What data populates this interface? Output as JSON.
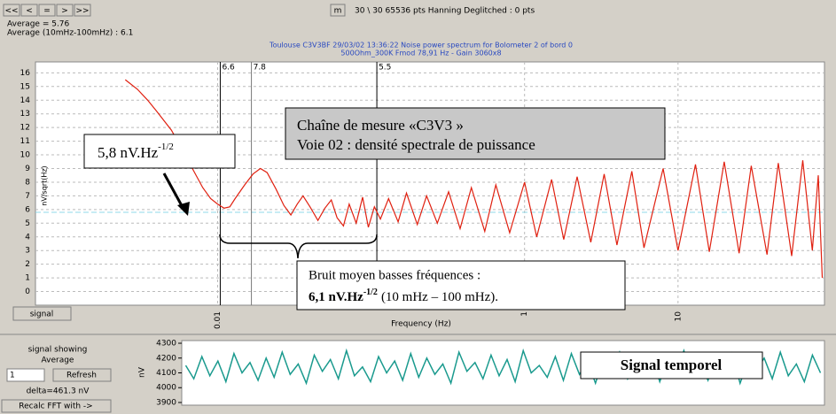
{
  "toolbar": {
    "buttons": [
      "<<",
      "<",
      "=",
      ">",
      ">>"
    ],
    "m_button": "m",
    "status": "30 \\ 30 65536 pts Hanning Deglitched : 0 pts"
  },
  "stats": {
    "average": "Average = 5.76",
    "average_band": "Average (10mHz-100mHz) : 6.1"
  },
  "annotations": {
    "level_box": {
      "text": "5,8 nV.Hz",
      "sup": "-1/2"
    },
    "chain_box": {
      "line1": "Chaîne de mesure «C3V3 »",
      "line2": "Voie 02  : densité spectrale de puissance"
    },
    "noise_box": {
      "line1": "Bruit moyen basses fréquences  :",
      "value": "6,1 nV.Hz",
      "sup": "-1/2",
      "range": "(10 mHz – 100 mHz)."
    },
    "signal_box": "Signal temporel"
  },
  "controls": {
    "signal_button": "signal",
    "showing": "signal showing",
    "mode": "Average",
    "input": "1",
    "refresh": "Refresh",
    "delta": "delta=461.3 nV",
    "recalc": "Recalc FFT with ->"
  },
  "chart_data": [
    {
      "type": "line",
      "title": "Toulouse C3V3BF 29/03/02 13:36:22  Noise power spectrum for Bolometer 2 of bord 0",
      "subtitle": "500Ohm_300K     Fmod 78,91 Hz - Gain 3060x8",
      "x_label": "Frequency (Hz)",
      "y_label": "nV/sqrt(Hz)",
      "x_scale": "log",
      "xlim": [
        0.00065,
        90
      ],
      "ylim": [
        -1,
        16.8
      ],
      "xticks": [
        {
          "value": 0.01,
          "label": "0.01"
        },
        1,
        10
      ],
      "yticks": [
        0,
        1,
        2,
        3,
        4,
        5,
        6,
        7,
        8,
        9,
        10,
        11,
        12,
        13,
        14,
        15,
        16
      ],
      "grid": true,
      "color": "#e02010",
      "reference_line": {
        "value": 5.8,
        "color": "#8fd8e8"
      },
      "cursors": [
        {
          "label": "6.6",
          "x": 0.0104
        },
        {
          "label": "7.8",
          "x": 0.0166
        },
        {
          "label": "5.5",
          "x": 0.109
        }
      ],
      "x": [
        0.0025,
        0.003,
        0.0035,
        0.004,
        0.005,
        0.006,
        0.007,
        0.008,
        0.009,
        0.01,
        0.011,
        0.012,
        0.013,
        0.015,
        0.017,
        0.019,
        0.021,
        0.024,
        0.027,
        0.03,
        0.033,
        0.036,
        0.04,
        0.045,
        0.05,
        0.055,
        0.06,
        0.066,
        0.072,
        0.08,
        0.088,
        0.096,
        0.105,
        0.115,
        0.13,
        0.15,
        0.17,
        0.2,
        0.23,
        0.27,
        0.32,
        0.38,
        0.45,
        0.55,
        0.65,
        0.8,
        1.0,
        1.2,
        1.5,
        1.8,
        2.2,
        2.7,
        3.3,
        4,
        5,
        6,
        8,
        10,
        13,
        16,
        20,
        25,
        30,
        38,
        45,
        55,
        65,
        75,
        82,
        87
      ],
      "values": [
        15.5,
        14.8,
        14.0,
        13.2,
        11.8,
        10.2,
        8.8,
        7.6,
        6.8,
        6.4,
        6.1,
        6.2,
        6.8,
        7.8,
        8.6,
        9.0,
        8.7,
        7.5,
        6.3,
        5.6,
        6.4,
        7.0,
        6.2,
        5.2,
        6.1,
        6.7,
        5.4,
        4.8,
        6.4,
        5.0,
        6.9,
        4.7,
        6.2,
        5.3,
        6.8,
        5.1,
        7.2,
        4.9,
        7.0,
        5.0,
        7.3,
        4.6,
        7.6,
        4.4,
        7.8,
        4.3,
        8.0,
        4.0,
        8.2,
        3.8,
        8.4,
        3.6,
        8.6,
        3.4,
        8.8,
        3.2,
        9.0,
        3.0,
        9.3,
        2.9,
        9.5,
        2.8,
        9.2,
        2.7,
        9.4,
        2.6,
        9.6,
        3.0,
        8.5,
        1.0
      ]
    },
    {
      "type": "line",
      "y_label": "nV",
      "ylim": [
        3882,
        4318
      ],
      "yticks": [
        3900,
        4000,
        4100,
        4200,
        4300
      ],
      "color": "#1a9a8e",
      "values": [
        4150,
        4060,
        4210,
        4080,
        4180,
        4040,
        4230,
        4100,
        4170,
        4050,
        4200,
        4070,
        4240,
        4090,
        4160,
        4030,
        4220,
        4110,
        4190,
        4060,
        4250,
        4080,
        4140,
        4040,
        4210,
        4100,
        4180,
        4050,
        4230,
        4070,
        4200,
        4090,
        4160,
        4030,
        4240,
        4110,
        4170,
        4060,
        4220,
        4080,
        4190,
        4040,
        4250,
        4100,
        4150,
        4070,
        4210,
        4050,
        4230,
        4090,
        4180,
        4030,
        4200,
        4110,
        4240,
        4060,
        4160,
        4080,
        4220,
        4040,
        4190,
        4100,
        4250,
        4070,
        4170,
        4050,
        4210,
        4090,
        4230,
        4030,
        4180,
        4110,
        4200,
        4060,
        4240,
        4080,
        4160,
        4040,
        4220,
        4100
      ]
    }
  ]
}
